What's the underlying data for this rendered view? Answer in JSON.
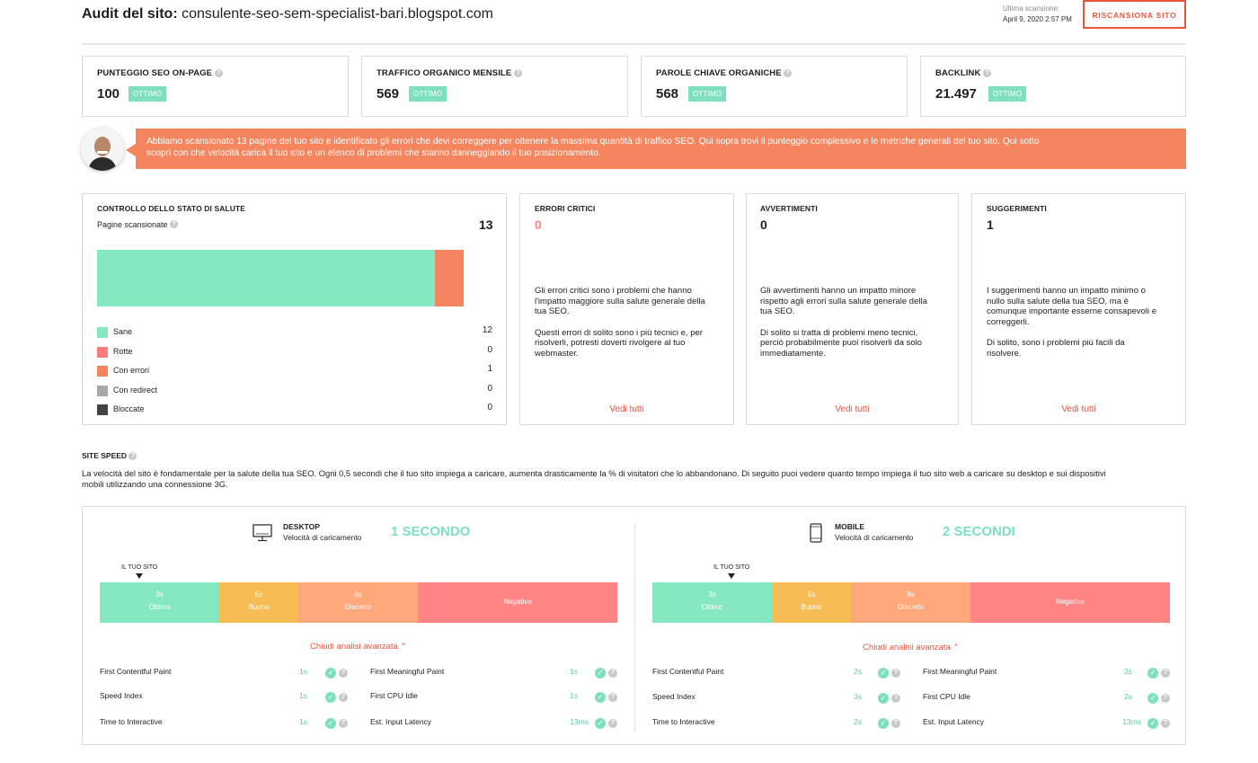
{
  "header": {
    "title_label": "Audit del sito:",
    "site": "consulente-seo-sem-specialist-bari.blogspot.com",
    "scan_label": "Ultima scansione:",
    "scan_date": "April 9, 2020 2:57 PM",
    "rescan_button": "RISCANSIONA SITO"
  },
  "kpis": [
    {
      "title": "PUNTEGGIO SEO ON-PAGE",
      "value": "100",
      "badge": "OTTIMO"
    },
    {
      "title": "TRAFFICO ORGANICO MENSILE",
      "value": "569",
      "badge": "OTTIMO"
    },
    {
      "title": "PAROLE CHIAVE ORGANICHE",
      "value": "568",
      "badge": "OTTIMO"
    },
    {
      "title": "BACKLINK",
      "value": "21.497",
      "badge": "OTTIMO"
    }
  ],
  "banner": {
    "line1": "Abbiamo scansionato 13 pagine del tuo sito e identificato gli errori che devi correggere per ottenere la massima quantità di traffico SEO. Qui sopra trovi il punteggio complessivo e le metriche generali del tuo sito. Qui sotto",
    "line2": "scopri con che velocità carica il tuo sito e un elenco di problemi che stanno danneggiando il tuo posizionamento."
  },
  "health": {
    "title": "CONTROLLO DELLO STATO DI SALUTE",
    "pages_label": "Pagine scansionate",
    "pages_count": "13",
    "legend": [
      {
        "label": "Sane",
        "value": "12",
        "color": "#85e8c1"
      },
      {
        "label": "Rotte",
        "value": "0",
        "color": "#ff7b7b"
      },
      {
        "label": "Con errori",
        "value": "1",
        "color": "#f4855e"
      },
      {
        "label": "Con redirect",
        "value": "0",
        "color": "#a8a8a8"
      },
      {
        "label": "Bloccate",
        "value": "0",
        "color": "#444444"
      }
    ]
  },
  "issues": [
    {
      "title": "ERRORI CRITICI",
      "count": "0",
      "p1": [
        "Gli errori critici sono i problemi che hanno",
        "l'impatto maggiore sulla salute generale della",
        "tua SEO."
      ],
      "p2": [
        "Questi errori di solito sono i più tecnici e, per",
        "risolverli, potresti doverti rivolgere al tuo",
        "webmaster."
      ],
      "link": "Vedi tutti"
    },
    {
      "title": "AVVERTIMENTI",
      "count": "0",
      "p1": [
        "Gli avvertimenti hanno un impatto minore",
        "rispetto agli errori sulla salute generale della",
        "tua SEO."
      ],
      "p2": [
        "Di solito si tratta di problemi meno tecnici,",
        "perciò probabilmente puoi risolverli da solo",
        "immediatamente."
      ],
      "link": "Vedi tutti"
    },
    {
      "title": "SUGGERIMENTI",
      "count": "1",
      "p1": [
        "I suggerimenti hanno un impatto minimo o",
        "nullo sulla salute della tua SEO, ma è",
        "comunque importante esserne consapevoli e",
        "correggerli."
      ],
      "p2": [
        "Di solito, sono i problemi più facili da",
        "risolvere."
      ],
      "link": "Vedi tutti"
    }
  ],
  "speed": {
    "title": "SITE SPEED",
    "desc1": "La velocità del sito è fondamentale per la salute della tua SEO. Ogni 0,5 secondi che il tuo sito impiega a caricare, aumenta drasticamente la % di visitatori che lo abbandonano. Di seguito puoi vedere quanto tempo impiega il tuo sito web a caricare su desktop e sui dispositivi",
    "desc2": "mobili utilizzando una connessione 3G.",
    "marker": "IL TUO SITO",
    "toggle": "Chiudi analisi avanzata",
    "bands": [
      {
        "time": "3s",
        "label": "Ottimo",
        "color": "#85e8c1"
      },
      {
        "time": "5s",
        "label": "Buono",
        "color": "#f6bd55"
      },
      {
        "time": "8s",
        "label": "Discreto",
        "color": "#fda77a"
      },
      {
        "time": "",
        "label": "Negativo",
        "color": "#ff8585"
      }
    ],
    "panels": [
      {
        "device": "DESKTOP",
        "sub": "Velocità di caricamento",
        "result": "1 SECONDO",
        "metrics": [
          {
            "name": "First Contentful Paint",
            "value": "1s"
          },
          {
            "name": "First Meaningful Paint",
            "value": "1s"
          },
          {
            "name": "Speed Index",
            "value": "1s"
          },
          {
            "name": "First CPU Idle",
            "value": "1s"
          },
          {
            "name": "Time to Interactive",
            "value": "1s"
          },
          {
            "name": "Est. Input Latency",
            "value": "13ms"
          }
        ]
      },
      {
        "device": "MOBILE",
        "sub": "Velocità di caricamento",
        "result": "2 SECONDI",
        "metrics": [
          {
            "name": "First Contentful Paint",
            "value": "2s"
          },
          {
            "name": "First Meaningful Paint",
            "value": "2s"
          },
          {
            "name": "Speed Index",
            "value": "3s"
          },
          {
            "name": "First CPU Idle",
            "value": "2s"
          },
          {
            "name": "Time to Interactive",
            "value": "2s"
          },
          {
            "name": "Est. Input Latency",
            "value": "13ms"
          }
        ]
      }
    ]
  }
}
